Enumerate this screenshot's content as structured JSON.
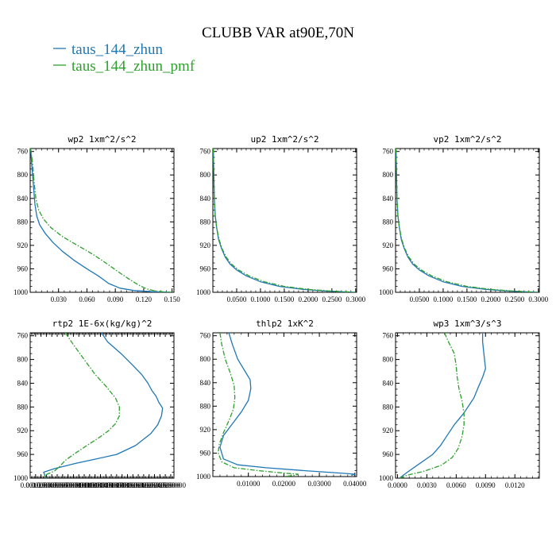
{
  "title": "CLUBB VAR at90E,70N",
  "legend": [
    {
      "name": "taus_144_zhun",
      "color": "#1f77b4",
      "dash": "solid"
    },
    {
      "name": "taus_144_zhun_pmf",
      "color": "#2ca02c",
      "dash": "dashdot"
    }
  ],
  "chart_data": [
    {
      "type": "line",
      "title": "wp2  1xm^2/s^2",
      "xlim": [
        0,
        0.152
      ],
      "xticks": [
        0.03,
        0.06,
        0.09,
        0.12,
        0.15
      ],
      "xtick_labels": [
        "0.030",
        "0.060",
        "0.090",
        "0.120",
        "0.150"
      ],
      "ylim": [
        1000,
        755
      ],
      "yticks": [
        760,
        800,
        840,
        880,
        920,
        960,
        1000
      ],
      "series": [
        {
          "x": [
            0.0005,
            0.0015,
            0.003,
            0.004,
            0.005,
            0.007,
            0.01,
            0.016,
            0.024,
            0.034,
            0.046,
            0.06,
            0.072,
            0.083,
            0.095,
            0.11,
            0.13,
            0.15
          ],
          "y": [
            755,
            780,
            810,
            830,
            850,
            870,
            885,
            900,
            915,
            930,
            945,
            960,
            972,
            985,
            993,
            997,
            999,
            1000
          ]
        },
        {
          "x": [
            0.0005,
            0.0025,
            0.004,
            0.006,
            0.009,
            0.014,
            0.022,
            0.034,
            0.05,
            0.066,
            0.08,
            0.093,
            0.105,
            0.115,
            0.123,
            0.13,
            0.14,
            0.15
          ],
          "y": [
            755,
            780,
            810,
            840,
            860,
            875,
            890,
            905,
            920,
            935,
            950,
            965,
            978,
            988,
            994,
            997,
            999,
            1000
          ]
        }
      ]
    },
    {
      "type": "line",
      "title": "up2  1xm^2/s^2",
      "xlim": [
        0,
        0.302
      ],
      "xticks": [
        0.05,
        0.1,
        0.15,
        0.2,
        0.25,
        0.3
      ],
      "xtick_labels": [
        "0.0500",
        "0.1000",
        "0.1500",
        "0.2000",
        "0.2500",
        "0.3000"
      ],
      "ylim": [
        1000,
        755
      ],
      "yticks": [
        760,
        800,
        840,
        880,
        920,
        960,
        1000
      ],
      "series": [
        {
          "x": [
            0.001,
            0.002,
            0.003,
            0.005,
            0.008,
            0.012,
            0.018,
            0.026,
            0.036,
            0.05,
            0.07,
            0.1,
            0.14,
            0.19,
            0.24,
            0.3
          ],
          "y": [
            755,
            800,
            840,
            870,
            890,
            910,
            925,
            940,
            952,
            962,
            972,
            982,
            990,
            995,
            998,
            1000
          ]
        },
        {
          "x": [
            0.001,
            0.002,
            0.003,
            0.005,
            0.008,
            0.013,
            0.019,
            0.028,
            0.039,
            0.054,
            0.076,
            0.108,
            0.15,
            0.2,
            0.25,
            0.3
          ],
          "y": [
            755,
            800,
            840,
            870,
            890,
            910,
            925,
            940,
            952,
            962,
            972,
            982,
            990,
            995,
            998,
            1000
          ]
        }
      ]
    },
    {
      "type": "line",
      "title": "vp2  1xm^2/s^2",
      "xlim": [
        0,
        0.302
      ],
      "xticks": [
        0.05,
        0.1,
        0.15,
        0.2,
        0.25,
        0.3
      ],
      "xtick_labels": [
        "0.0500",
        "0.1000",
        "0.1500",
        "0.2000",
        "0.2500",
        "0.3000"
      ],
      "ylim": [
        1000,
        755
      ],
      "yticks": [
        760,
        800,
        840,
        880,
        920,
        960,
        1000
      ],
      "series": [
        {
          "x": [
            0.001,
            0.002,
            0.003,
            0.005,
            0.008,
            0.012,
            0.018,
            0.026,
            0.036,
            0.05,
            0.07,
            0.1,
            0.14,
            0.19,
            0.24,
            0.3
          ],
          "y": [
            755,
            800,
            840,
            870,
            890,
            910,
            925,
            940,
            952,
            962,
            972,
            982,
            990,
            995,
            998,
            1000
          ]
        },
        {
          "x": [
            0.001,
            0.002,
            0.003,
            0.005,
            0.008,
            0.013,
            0.019,
            0.028,
            0.039,
            0.054,
            0.076,
            0.108,
            0.15,
            0.2,
            0.25,
            0.3
          ],
          "y": [
            755,
            800,
            840,
            870,
            890,
            910,
            925,
            940,
            952,
            962,
            972,
            982,
            990,
            995,
            998,
            1000
          ]
        }
      ]
    },
    {
      "type": "line",
      "title": "rtp2  1E-6x(kg/kg)^2",
      "xlim": [
        0,
        0.0266
      ],
      "xticks": [
        0.001,
        0.002,
        0.003,
        0.004,
        0.005,
        0.006,
        0.007,
        0.008,
        0.009,
        0.01,
        0.011,
        0.012,
        0.013,
        0.014,
        0.015,
        0.016,
        0.017,
        0.018,
        0.019,
        0.02,
        0.021,
        0.022,
        0.023,
        0.024,
        0.025,
        0.026
      ],
      "xtick_labels": [
        "0.0010000",
        "0.0020000",
        "0.0030000",
        "0.0040000",
        "0.0050000",
        "0.0060000",
        "0.0070000",
        "0.0080000",
        "0.0090000",
        "0.0100000",
        "0.0110000",
        "0.0120000",
        "0.0130000",
        "0.0140000",
        "0.0150000",
        "0.0160000",
        "0.0170000",
        "0.0180000",
        "0.0190000",
        "0.0200000",
        "0.0210000",
        "0.0220000",
        "0.0230000",
        "0.0240000",
        "0.0250000",
        "0.0260000"
      ],
      "ylim": [
        1000,
        755
      ],
      "yticks": [
        760,
        800,
        840,
        880,
        920,
        960,
        1000
      ],
      "series": [
        {
          "x": [
            0.0132,
            0.0143,
            0.0168,
            0.019,
            0.0206,
            0.0218,
            0.0225,
            0.0233,
            0.0238,
            0.0245,
            0.0243,
            0.0236,
            0.0223,
            0.0195,
            0.016,
            0.012,
            0.0085,
            0.0045,
            0.0025,
            0.0027,
            0.003
          ],
          "y": [
            755,
            770,
            790,
            810,
            825,
            840,
            852,
            862,
            872,
            882,
            895,
            910,
            925,
            945,
            960,
            968,
            975,
            984,
            990,
            995,
            1000
          ]
        },
        {
          "x": [
            0.0065,
            0.008,
            0.01,
            0.012,
            0.014,
            0.0158,
            0.0165,
            0.0165,
            0.0158,
            0.0145,
            0.0127,
            0.0105,
            0.0085,
            0.0065,
            0.0055,
            0.0045,
            0.0035,
            0.0027,
            0.0028,
            0.003
          ],
          "y": [
            755,
            775,
            800,
            825,
            845,
            865,
            880,
            895,
            908,
            920,
            932,
            945,
            957,
            970,
            980,
            988,
            992,
            995,
            998,
            1000
          ]
        }
      ]
    },
    {
      "type": "line",
      "title": "thlp2  1xK^2",
      "xlim": [
        0,
        0.0405
      ],
      "xticks": [
        0.01,
        0.02,
        0.03,
        0.04
      ],
      "xtick_labels": [
        "0.01000",
        "0.02000",
        "0.03000",
        "0.04000"
      ],
      "ylim": [
        1000,
        755
      ],
      "yticks": [
        760,
        800,
        840,
        880,
        920,
        960,
        1000
      ],
      "series": [
        {
          "x": [
            0.0045,
            0.0055,
            0.007,
            0.009,
            0.0105,
            0.0107,
            0.01,
            0.008,
            0.0055,
            0.003,
            0.002,
            0.003,
            0.007,
            0.015,
            0.026,
            0.036,
            0.04,
            0.039
          ],
          "y": [
            755,
            775,
            800,
            820,
            835,
            850,
            870,
            890,
            910,
            930,
            950,
            970,
            980,
            985,
            990,
            994,
            996,
            998
          ]
        },
        {
          "x": [
            0.002,
            0.0025,
            0.0035,
            0.005,
            0.006,
            0.0062,
            0.0058,
            0.0045,
            0.003,
            0.0018,
            0.0015,
            0.0025,
            0.006,
            0.013,
            0.02,
            0.024,
            0.023,
            0.02
          ],
          "y": [
            755,
            775,
            800,
            825,
            845,
            865,
            885,
            905,
            925,
            945,
            960,
            975,
            985,
            990,
            994,
            996,
            998,
            1000
          ]
        }
      ]
    },
    {
      "type": "line",
      "title": "wp3  1xm^3/s^3",
      "xlim": [
        -0.0002,
        0.0145
      ],
      "xticks": [
        0.0,
        0.003,
        0.006,
        0.009,
        0.012
      ],
      "xtick_labels": [
        "0.0000",
        "0.0030",
        "0.0060",
        "0.0090",
        "0.0120"
      ],
      "ylim": [
        1000,
        755
      ],
      "yticks": [
        760,
        800,
        840,
        880,
        920,
        960,
        1000
      ],
      "series": [
        {
          "x": [
            0.0087,
            0.0087,
            0.0088,
            0.0089,
            0.009,
            0.0087,
            0.0083,
            0.0078,
            0.0068,
            0.0058,
            0.005,
            0.0044,
            0.0036,
            0.0023,
            0.001,
            0.0002
          ],
          "y": [
            755,
            770,
            785,
            800,
            815,
            830,
            845,
            865,
            890,
            910,
            930,
            945,
            960,
            975,
            990,
            1000
          ]
        },
        {
          "x": [
            0.0048,
            0.0052,
            0.0058,
            0.006,
            0.0061,
            0.0063,
            0.0066,
            0.0068,
            0.0068,
            0.0066,
            0.0062,
            0.0056,
            0.0045,
            0.0028,
            0.001,
            0.0002
          ],
          "y": [
            755,
            770,
            790,
            810,
            830,
            850,
            870,
            890,
            910,
            930,
            950,
            965,
            978,
            988,
            995,
            1000
          ]
        }
      ]
    }
  ]
}
